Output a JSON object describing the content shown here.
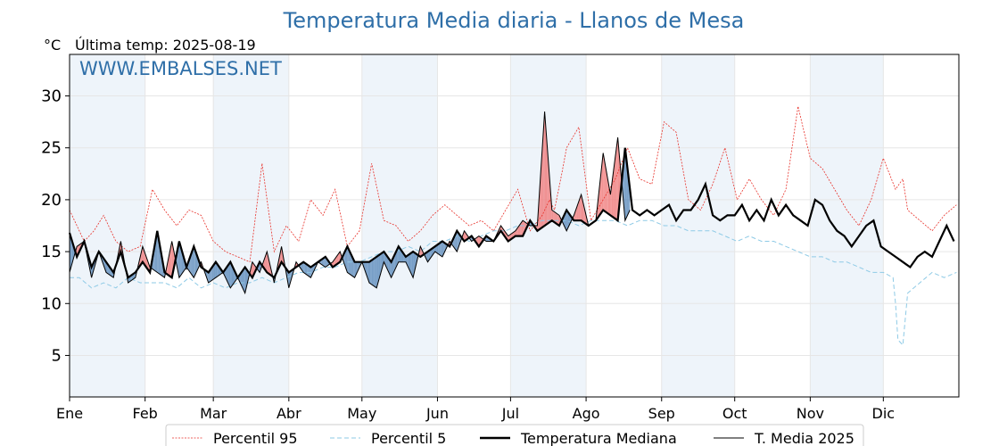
{
  "chart_data": {
    "type": "line",
    "title": "Temperatura Media diaria - Llanos de Mesa",
    "y_unit": "°C",
    "last_temp_label": "Última temp: 2025-08-19",
    "watermark": "WWW.EMBALSES.NET",
    "ylim": [
      1,
      34
    ],
    "yticks": [
      5,
      10,
      15,
      20,
      25,
      30
    ],
    "months": [
      "Ene",
      "Feb",
      "Mar",
      "Abr",
      "May",
      "Jun",
      "Jul",
      "Ago",
      "Sep",
      "Oct",
      "Nov",
      "Dic"
    ],
    "grid": true,
    "legend_position": "bottom",
    "colors": {
      "p95": "#e8312a",
      "p5": "#8ecae6",
      "median": "#000000",
      "current": "#000000",
      "above_fill": "#f08080",
      "below_fill": "#4f81b5",
      "band": "#eef4fa",
      "title": "#2f6fa8"
    },
    "series": [
      {
        "name": "Percentil 95",
        "x": [
          1,
          4,
          7,
          11,
          15,
          20,
          25,
          30,
          35,
          40,
          45,
          50,
          55,
          60,
          65,
          70,
          75,
          80,
          85,
          90,
          95,
          100,
          105,
          110,
          115,
          120,
          125,
          130,
          135,
          140,
          145,
          150,
          155,
          160,
          165,
          170,
          175,
          180,
          185,
          190,
          195,
          198,
          200,
          203,
          205,
          210,
          215,
          220,
          225,
          230,
          235,
          240,
          245,
          250,
          255,
          260,
          265,
          270,
          275,
          280,
          285,
          290,
          295,
          300,
          305,
          310,
          315,
          320,
          325,
          330,
          335,
          340,
          343,
          345,
          350,
          355,
          360,
          365
        ],
        "values": [
          19,
          17.5,
          16,
          17,
          18.5,
          16,
          15,
          15.5,
          21,
          19,
          17.5,
          19,
          18.5,
          16,
          15,
          14.5,
          14,
          23.5,
          15,
          17.5,
          16,
          20,
          18.5,
          21,
          15.5,
          17,
          23.5,
          18,
          17.5,
          16,
          17,
          18.5,
          19.5,
          18.5,
          17.5,
          18,
          17,
          19,
          21,
          17,
          18.5,
          20,
          19,
          22.5,
          25,
          27,
          18,
          20,
          22,
          25,
          22,
          21.5,
          27.5,
          26.5,
          20,
          19,
          21.5,
          25,
          20,
          22,
          20,
          18.5,
          21,
          29,
          24,
          23,
          21,
          19,
          17.5,
          20,
          24,
          21,
          22,
          19,
          18,
          17,
          18.5,
          19.5
        ]
      },
      {
        "name": "Percentil 5",
        "x": [
          1,
          5,
          10,
          15,
          20,
          25,
          30,
          35,
          40,
          45,
          50,
          55,
          60,
          65,
          70,
          75,
          80,
          85,
          90,
          95,
          100,
          105,
          110,
          115,
          120,
          125,
          130,
          135,
          140,
          145,
          150,
          155,
          160,
          165,
          170,
          175,
          180,
          185,
          190,
          195,
          200,
          205,
          210,
          215,
          220,
          225,
          230,
          235,
          240,
          245,
          250,
          255,
          260,
          265,
          270,
          275,
          280,
          285,
          290,
          295,
          300,
          305,
          310,
          315,
          320,
          325,
          330,
          335,
          339,
          340,
          341,
          343,
          345,
          350,
          355,
          360,
          365
        ],
        "values": [
          12.5,
          12.5,
          11.5,
          12,
          11.5,
          12.5,
          12,
          12,
          12,
          11.5,
          12.5,
          11.5,
          12,
          11.5,
          12,
          12,
          12.5,
          12,
          12.5,
          13,
          13,
          13.5,
          13.5,
          14,
          14,
          14.5,
          15,
          15,
          15.5,
          15,
          16,
          16,
          16.5,
          16,
          16.5,
          17,
          17,
          17.5,
          17.5,
          18,
          18,
          18,
          17.5,
          18,
          18,
          18,
          17.5,
          18,
          18,
          17.5,
          17.5,
          17,
          17,
          17,
          16.5,
          16,
          16.5,
          16,
          16,
          15.5,
          15,
          14.5,
          14.5,
          14,
          14,
          13.5,
          13,
          13,
          12.5,
          10,
          6.5,
          6,
          11,
          12,
          13,
          12.5,
          13
        ]
      },
      {
        "name": "Temperatura Mediana",
        "x": [
          1,
          4,
          7,
          10,
          13,
          16,
          19,
          22,
          25,
          28,
          31,
          34,
          37,
          40,
          43,
          46,
          49,
          52,
          55,
          58,
          61,
          64,
          67,
          70,
          73,
          76,
          79,
          82,
          85,
          88,
          91,
          94,
          97,
          100,
          103,
          106,
          109,
          112,
          115,
          118,
          121,
          124,
          127,
          130,
          133,
          136,
          139,
          142,
          145,
          148,
          151,
          154,
          157,
          160,
          163,
          166,
          169,
          172,
          175,
          178,
          181,
          184,
          187,
          190,
          193,
          196,
          199,
          202,
          205,
          208,
          211,
          214,
          217,
          220,
          223,
          226,
          229,
          232,
          235,
          238,
          241,
          244,
          247,
          250,
          253,
          256,
          259,
          262,
          265,
          268,
          271,
          274,
          277,
          280,
          283,
          286,
          289,
          292,
          295,
          298,
          301,
          304,
          307,
          310,
          313,
          316,
          319,
          322,
          325,
          328,
          331,
          334,
          337,
          340,
          343,
          346,
          349,
          352,
          355,
          358,
          361,
          364
        ],
        "values": [
          16.8,
          14.5,
          16,
          13.5,
          15,
          14,
          13,
          15,
          12.5,
          13,
          14,
          13,
          17,
          13,
          12.5,
          16,
          13.5,
          15.5,
          13.5,
          13,
          14,
          13,
          14,
          12.5,
          13.5,
          12.5,
          14,
          13,
          12.5,
          14,
          13,
          13.5,
          14,
          13.5,
          14,
          14.5,
          13.5,
          14,
          15.5,
          14,
          14,
          14,
          14.5,
          15,
          14,
          15.5,
          14.5,
          15,
          14.5,
          15,
          15.5,
          16,
          15.5,
          17,
          16,
          16.5,
          15.5,
          16.5,
          16,
          17,
          16,
          16.5,
          16.5,
          18,
          17,
          17.5,
          18,
          17.5,
          19,
          18,
          18,
          17.5,
          18,
          19,
          18.5,
          18,
          25,
          19,
          18.5,
          19,
          18.5,
          19,
          19.5,
          18,
          19,
          19,
          20,
          21.5,
          18.5,
          18,
          18.5,
          18.5,
          19.5,
          18,
          19,
          18,
          20,
          18.5,
          19.5,
          18.5,
          18,
          17.5,
          20,
          19.5,
          18,
          17,
          16.5,
          15.5,
          16.5,
          17.5,
          18,
          15.5,
          15,
          14.5,
          14,
          13.5,
          14.5,
          15,
          14.5,
          16,
          17.5,
          16
        ]
      },
      {
        "name": "T. Media 2025",
        "x": [
          1,
          4,
          7,
          10,
          13,
          16,
          19,
          22,
          25,
          28,
          31,
          34,
          37,
          40,
          43,
          46,
          49,
          52,
          55,
          58,
          61,
          64,
          67,
          70,
          73,
          76,
          79,
          82,
          85,
          88,
          91,
          94,
          97,
          100,
          103,
          106,
          109,
          112,
          115,
          118,
          121,
          124,
          127,
          130,
          133,
          136,
          139,
          142,
          145,
          148,
          151,
          154,
          157,
          160,
          163,
          166,
          169,
          172,
          175,
          178,
          181,
          184,
          187,
          190,
          193,
          196,
          199,
          202,
          205,
          208,
          211,
          214,
          217,
          220,
          223,
          226,
          229,
          231
        ],
        "values": [
          13,
          15.5,
          16,
          12.5,
          15,
          13,
          12.5,
          16,
          12,
          12.5,
          15.5,
          13.5,
          13,
          12.5,
          16,
          12.5,
          13.5,
          12.5,
          14,
          12,
          12.5,
          13,
          11.5,
          12.5,
          11,
          14,
          13,
          15,
          12,
          15.5,
          11.5,
          14,
          13,
          12.5,
          14,
          13.5,
          14,
          15,
          13,
          12.5,
          14,
          12,
          11.5,
          14,
          12.5,
          14,
          14,
          12.5,
          15.5,
          14,
          15,
          14.5,
          16,
          15,
          17,
          16,
          16.5,
          16,
          16,
          17.5,
          16.5,
          17,
          18,
          17.5,
          17.5,
          28.5,
          19,
          18.5,
          17,
          18.5,
          20.5,
          17.5,
          18,
          24.5,
          20.5,
          26,
          18,
          19
        ]
      }
    ]
  }
}
